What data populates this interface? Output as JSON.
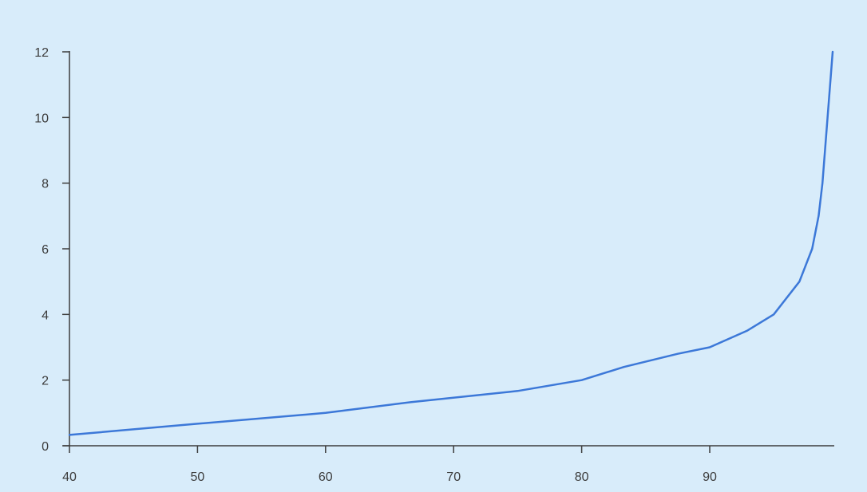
{
  "chart_data": {
    "type": "line",
    "title": "",
    "xlabel": "",
    "ylabel": "",
    "xlim": [
      40,
      99.6
    ],
    "ylim": [
      0,
      12
    ],
    "x_ticks": [
      "40",
      "50",
      "60",
      "70",
      "80",
      "90"
    ],
    "y_ticks": [
      "0",
      "2",
      "4",
      "6",
      "8",
      "10",
      "12"
    ],
    "grid": false,
    "legend": "none",
    "colors": {
      "background": "#d8ecfa",
      "axis": "#3c3c3c",
      "line": "#3c78d8"
    },
    "series": [
      {
        "x": [
          40,
          50,
          60,
          66.7,
          75,
          80,
          83.3,
          87.5,
          90,
          92.9,
          95,
          97,
          98,
          98.5,
          98.8,
          99,
          99.2,
          99.4,
          99.6
        ],
        "values": [
          0.33,
          0.67,
          1.0,
          1.33,
          1.67,
          2.0,
          2.4,
          2.8,
          3.0,
          3.5,
          4.0,
          5.0,
          6.0,
          7.0,
          8.0,
          9.0,
          10.0,
          11.0,
          12.0
        ]
      }
    ]
  }
}
